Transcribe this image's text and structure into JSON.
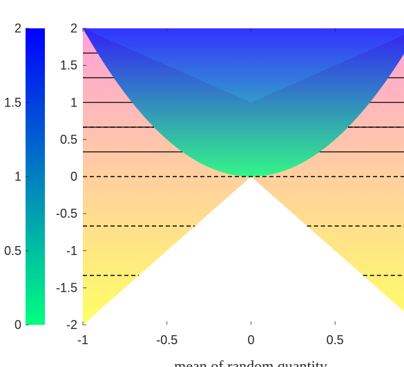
{
  "chart_data": {
    "type": "area",
    "title": "",
    "xlabel": "mean of random quantity",
    "ylabel": "",
    "xlim": [
      -1,
      0.91
    ],
    "ylim": [
      -2,
      2
    ],
    "x_ticks": [
      -1,
      -0.5,
      0,
      0.5
    ],
    "x_tick_labels": [
      "-1",
      "-0.5",
      "0",
      "0.5"
    ],
    "y_ticks": [
      -2,
      -1.5,
      -1,
      -0.5,
      0,
      0.5,
      1,
      1.5,
      2
    ],
    "y_tick_labels": [
      "-2",
      "-1.5",
      "-1",
      "-0.5",
      "0",
      "0.5",
      "1",
      "1.5",
      "2"
    ],
    "regions": [
      {
        "description": "lower region between y = -2|x| and y = 1 + |x|",
        "lower_curve": "-2*abs(x)",
        "upper_curve": "1+abs(x)",
        "gradient_colors": {
          "bottom": "#ffff33",
          "top": "#ff80cc"
        },
        "opacity": 0.75
      },
      {
        "description": "upper region between y = 2*x^2 and y = 2",
        "lower_curve": "2*x^2",
        "upper_curve": "2",
        "gradient_colors": {
          "bottom": "#00ff80",
          "top": "#0000ff"
        },
        "opacity": 0.8
      }
    ],
    "solid_levels": [
      0.3333,
      0.6667,
      1.0,
      1.3333,
      1.6667
    ],
    "dashed_levels": [
      -1.3333,
      -0.6667,
      0.0,
      0.6667
    ],
    "colorbar": {
      "range": [
        0,
        2
      ],
      "ticks": [
        0,
        0.5,
        1,
        1.5,
        2
      ],
      "tick_labels": [
        "0",
        "0.5",
        "1",
        "1.5",
        "2"
      ],
      "colors": {
        "bottom": "#00ff80",
        "top": "#0000ff"
      }
    }
  }
}
